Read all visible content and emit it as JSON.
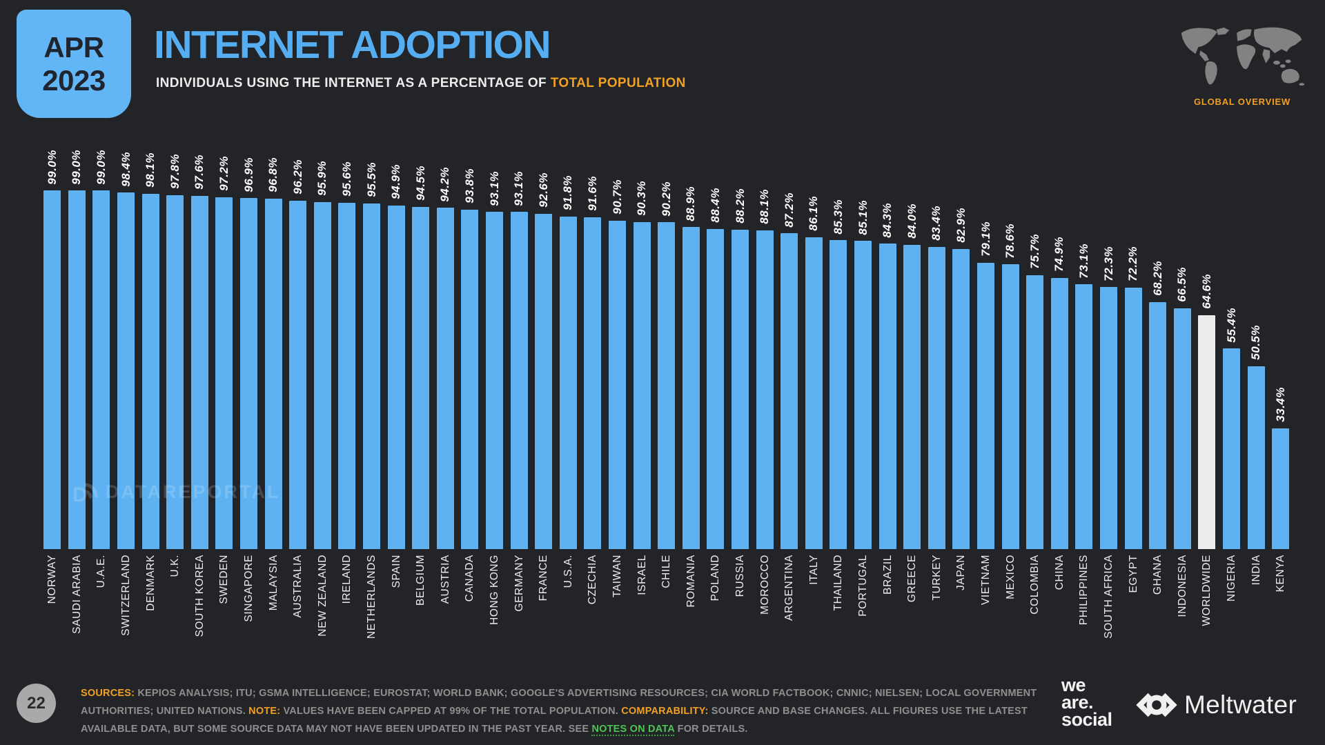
{
  "slide": {
    "badge": {
      "month": "APR",
      "year": "2023"
    },
    "title": "INTERNET ADOPTION",
    "subtitle_plain": "INDIVIDUALS USING THE INTERNET AS A PERCENTAGE OF ",
    "subtitle_highlight": "TOTAL POPULATION",
    "overview_label": "GLOBAL OVERVIEW",
    "page_number": "22",
    "watermark": "DATAREPORTAL"
  },
  "chart_data": {
    "type": "bar",
    "title": "Internet adoption: individuals using the internet as a percentage of total population (April 2023)",
    "value_suffix": "%",
    "ylim": [
      0,
      99
    ],
    "grid": false,
    "legend": "none",
    "categories": [
      "NORWAY",
      "SAUDI ARABIA",
      "U.A.E.",
      "SWITZERLAND",
      "DENMARK",
      "U.K.",
      "SOUTH KOREA",
      "SWEDEN",
      "SINGAPORE",
      "MALAYSIA",
      "AUSTRALIA",
      "NEW ZEALAND",
      "IRELAND",
      "NETHERLANDS",
      "SPAIN",
      "BELGIUM",
      "AUSTRIA",
      "CANADA",
      "HONG KONG",
      "GERMANY",
      "FRANCE",
      "U.S.A.",
      "CZECHIA",
      "TAIWAN",
      "ISRAEL",
      "CHILE",
      "ROMANIA",
      "POLAND",
      "RUSSIA",
      "MOROCCO",
      "ARGENTINA",
      "ITALY",
      "THAILAND",
      "PORTUGAL",
      "BRAZIL",
      "GREECE",
      "TURKEY",
      "JAPAN",
      "VIETNAM",
      "MEXICO",
      "COLOMBIA",
      "CHINA",
      "PHILIPPINES",
      "SOUTH AFRICA",
      "EGYPT",
      "GHANA",
      "INDONESIA",
      "WORLDWIDE",
      "NIGERIA",
      "INDIA",
      "KENYA"
    ],
    "values": [
      99.0,
      99.0,
      99.0,
      98.4,
      98.1,
      97.8,
      97.6,
      97.2,
      96.9,
      96.8,
      96.2,
      95.9,
      95.6,
      95.5,
      94.9,
      94.5,
      94.2,
      93.8,
      93.1,
      93.1,
      92.6,
      91.8,
      91.6,
      90.7,
      90.3,
      90.2,
      88.9,
      88.4,
      88.2,
      88.1,
      87.2,
      86.1,
      85.3,
      85.1,
      84.3,
      84.0,
      83.4,
      82.9,
      79.1,
      78.6,
      75.7,
      74.9,
      73.1,
      72.3,
      72.2,
      68.2,
      66.5,
      64.6,
      55.4,
      50.5,
      33.4
    ],
    "highlight_category": "WORLDWIDE",
    "bar_color": "#5eb2f1",
    "highlight_color": "#ececec"
  },
  "footer": {
    "segments": [
      {
        "text": "SOURCES:",
        "style": "orange"
      },
      {
        "text": " KEPIOS ANALYSIS; ITU; GSMA INTELLIGENCE; EUROSTAT; WORLD BANK; GOOGLE'S ADVERTISING RESOURCES; CIA WORLD FACTBOOK; CNNIC; NIELSEN; LOCAL GOVERNMENT AUTHORITIES; UNITED NATIONS. ",
        "style": "plain"
      },
      {
        "text": "NOTE:",
        "style": "orange"
      },
      {
        "text": " VALUES HAVE BEEN CAPPED AT 99% OF THE TOTAL POPULATION. ",
        "style": "plain"
      },
      {
        "text": "COMPARABILITY:",
        "style": "orange"
      },
      {
        "text": " SOURCE AND BASE CHANGES. ALL FIGURES USE THE LATEST AVAILABLE DATA, BUT SOME SOURCE DATA MAY NOT HAVE BEEN UPDATED IN THE PAST YEAR. SEE ",
        "style": "plain"
      },
      {
        "text": "NOTES ON DATA",
        "style": "green"
      },
      {
        "text": " FOR DETAILS.",
        "style": "plain"
      }
    ]
  },
  "branding": {
    "we_are_social_lines": [
      "we",
      "are.",
      "social"
    ],
    "meltwater": "Meltwater"
  },
  "colors": {
    "background": "#232427",
    "accent_blue": "#55aef2",
    "accent_orange": "#f2a024",
    "accent_green": "#4ec455",
    "bar_blue": "#5eb2f1",
    "worldwide_bar": "#ececec",
    "footer_gray": "#8f8f8f"
  }
}
